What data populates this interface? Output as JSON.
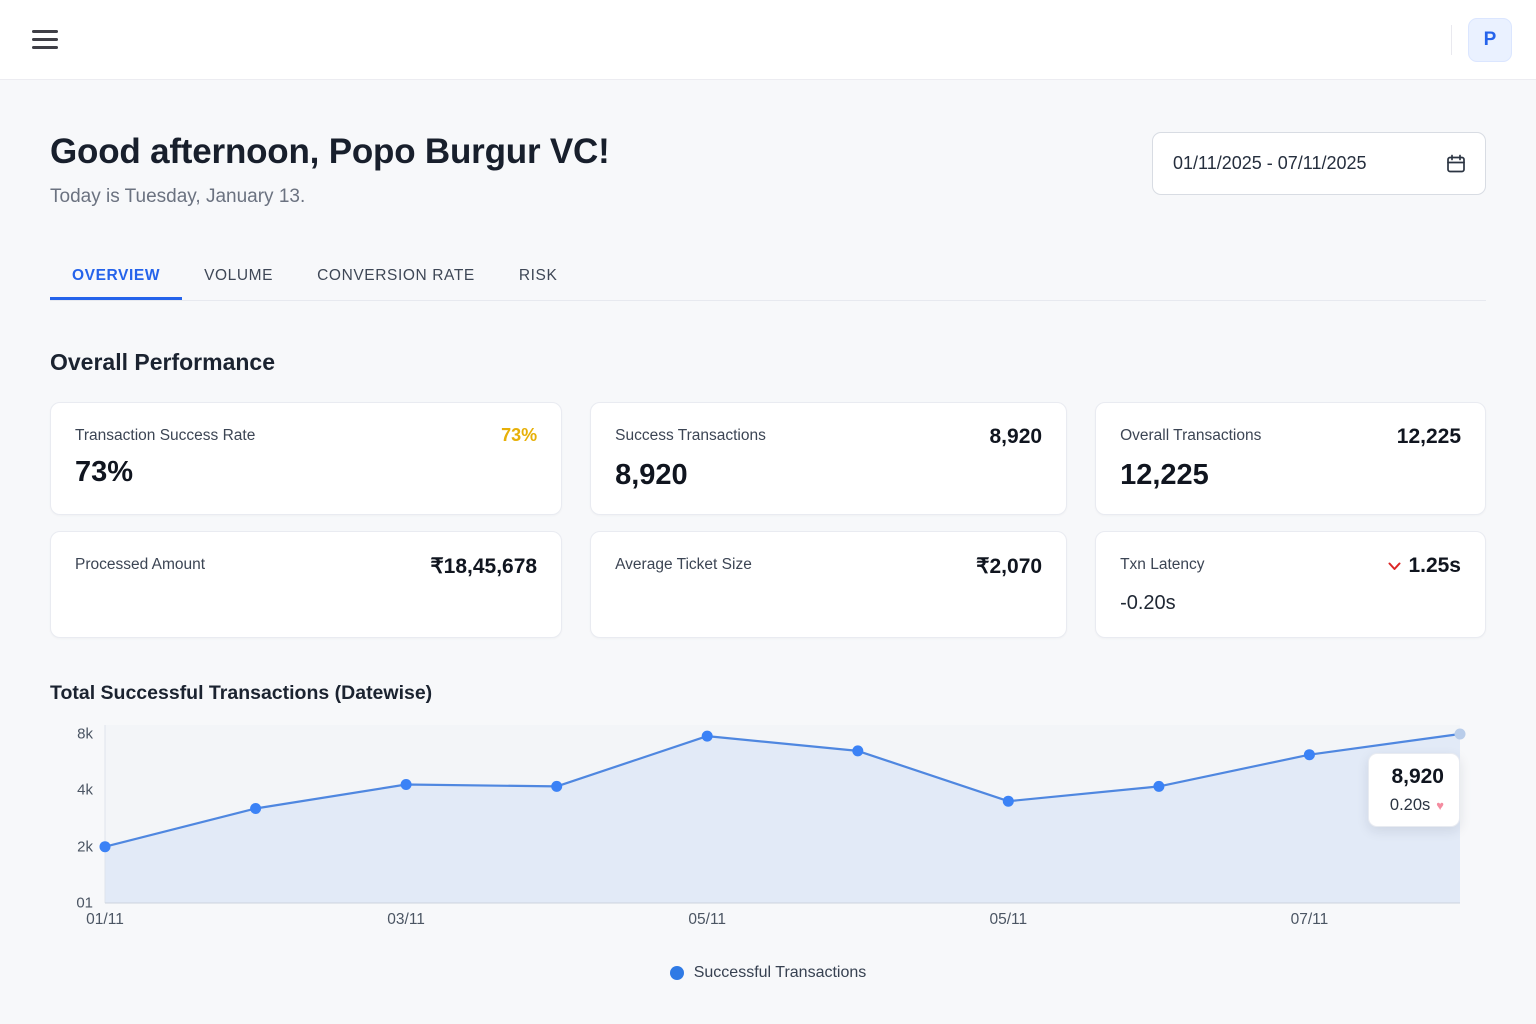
{
  "topbar": {
    "avatar_initial": "P"
  },
  "header": {
    "greeting": "Good afternoon, Popo Burgur VC!",
    "today_line": "Today is Tuesday, January 13.",
    "date_range": "01/11/2025 - 07/11/2025"
  },
  "tabs": [
    {
      "label": "OVERVIEW",
      "active": true
    },
    {
      "label": "VOLUME",
      "active": false
    },
    {
      "label": "CONVERSION RATE",
      "active": false
    },
    {
      "label": "RISK",
      "active": false
    }
  ],
  "section": {
    "title": "Overall Performance"
  },
  "cards": [
    {
      "title": "Transaction Success Rate",
      "corner_value": "73%",
      "main_value": "73%",
      "corner_color": "#e7b008"
    },
    {
      "title": "Success Transactions",
      "corner_value": "8,920",
      "main_value": "8,920"
    },
    {
      "title": "Overall Transactions",
      "corner_value": "12,225",
      "main_value": "12,225"
    },
    {
      "title": "Processed Amount",
      "corner_value": "₹18,45,678"
    },
    {
      "title": "Average Ticket Size",
      "corner_value": "₹2,070"
    },
    {
      "title": "Txn Latency",
      "corner_value": "1.25s",
      "sub_value": "-0.20s",
      "trend": "down"
    }
  ],
  "chart_data": {
    "type": "line",
    "title": "Total Successful Transactions (Datewise)",
    "y_tick_labels": [
      "8k",
      "4k",
      "2k",
      "01"
    ],
    "x_tick_labels": [
      "01/11",
      "03/11",
      "05/11",
      "05/11",
      "07/11"
    ],
    "x_tick_indices": [
      0,
      2,
      4,
      6,
      8
    ],
    "ylim": [
      0,
      8000
    ],
    "y_scale": "ticks 2k/4k/8k equally spaced (log2-like)",
    "grid": false,
    "series": [
      {
        "name": "Successful Transactions",
        "color": "#3b82f6",
        "values": [
          2000,
          3200,
          4300,
          4200,
          7800,
          6500,
          3500,
          4200,
          6200,
          8000
        ]
      }
    ],
    "last_point_color": "#b9cdea",
    "tooltip": {
      "value": "8,920",
      "secondary": "0.20s"
    },
    "legend": [
      {
        "label": "Successful Transactions",
        "color": "#2f7ae5"
      }
    ]
  },
  "icons": {
    "heart_char": "♥"
  },
  "colors": {
    "accent_blue": "#2563eb",
    "warning_yellow": "#e7b008",
    "danger_red": "#dc2626",
    "line_blue": "#4f87e0"
  }
}
